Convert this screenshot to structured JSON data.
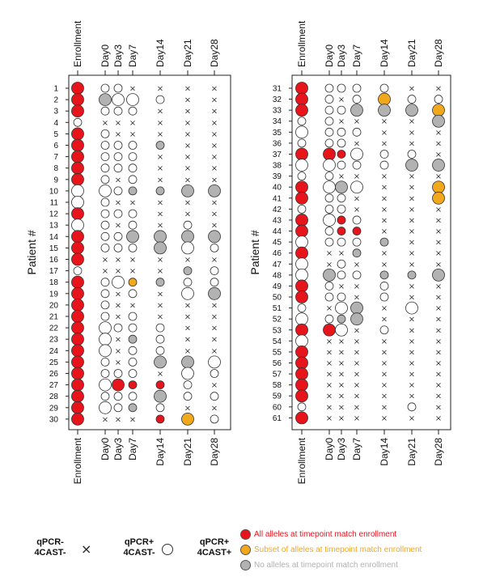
{
  "chart_data": {
    "type": "scatter",
    "y_axis_label": "Patient #",
    "columns": [
      "Enrollment",
      "Day0",
      "Day3",
      "Day7",
      "Day14",
      "Day21",
      "Day28"
    ],
    "panels": [
      {
        "patients": [
          "1",
          "2",
          "3",
          "4",
          "5",
          "6",
          "7",
          "8",
          "9",
          "10",
          "11",
          "12",
          "13",
          "14",
          "15",
          "16",
          "17",
          "18",
          "19",
          "20",
          "21",
          "22",
          "23",
          "24",
          "25",
          "26",
          "27",
          "28",
          "29",
          "30"
        ],
        "cells": [
          [
            "R2",
            "o1",
            "o1",
            "x",
            "x",
            "x",
            "x"
          ],
          [
            "R2",
            "G2",
            "o2",
            "o2",
            "o1",
            "x",
            "x"
          ],
          [
            "R2",
            "o1",
            "o1",
            "o1",
            "x",
            "x",
            "x"
          ],
          [
            "o1",
            "x",
            "x",
            "x",
            "x",
            "x",
            "x"
          ],
          [
            "R2",
            "o1",
            "x",
            "x",
            "x",
            "x",
            "x"
          ],
          [
            "R2",
            "o1",
            "o1",
            "o1",
            "G1",
            "x",
            "x"
          ],
          [
            "R2",
            "o1",
            "o1",
            "o1",
            "x",
            "x",
            "x"
          ],
          [
            "R2",
            "o1",
            "o1",
            "o1",
            "x",
            "x",
            "x"
          ],
          [
            "R2",
            "o1",
            "x",
            "o1",
            "x",
            "x",
            "x"
          ],
          [
            "o2",
            "o2",
            "o1",
            "G1",
            "G1",
            "G2",
            "G2"
          ],
          [
            "o2",
            "o1",
            "x",
            "x",
            "x",
            "x",
            "x"
          ],
          [
            "R2",
            "o1",
            "o1",
            "o1",
            "x",
            "x",
            "x"
          ],
          [
            "o2",
            "o1",
            "x",
            "o1",
            "x",
            "o1",
            "x"
          ],
          [
            "R2",
            "o1",
            "o1",
            "G2",
            "G2",
            "G2",
            "G2"
          ],
          [
            "R2",
            "o1",
            "o1",
            "o1",
            "G2",
            "o2",
            "o1"
          ],
          [
            "R2",
            "x",
            "x",
            "x",
            "x",
            "x",
            "x"
          ],
          [
            "o1",
            "x",
            "x",
            "x",
            "x",
            "G1",
            "o1"
          ],
          [
            "R2",
            "o1",
            "o2",
            "Y1",
            "G1",
            "o1",
            "o1"
          ],
          [
            "R2",
            "o1",
            "x",
            "o1",
            "x",
            "o2",
            "G2"
          ],
          [
            "R2",
            "o1",
            "x",
            "x",
            "x",
            "x",
            "x"
          ],
          [
            "R2",
            "o1",
            "x",
            "o1",
            "x",
            "x",
            "x"
          ],
          [
            "R2",
            "o2",
            "o1",
            "o1",
            "o1",
            "x",
            "x"
          ],
          [
            "R2",
            "o2",
            "x",
            "G1",
            "o1",
            "x",
            "x"
          ],
          [
            "R2",
            "o2",
            "x",
            "o1",
            "o1",
            "x",
            "x"
          ],
          [
            "R2",
            "o1",
            "x",
            "o1",
            "G2",
            "G2",
            "o2"
          ],
          [
            "R2",
            "o1",
            "o1",
            "o1",
            "x",
            "o2",
            "o1"
          ],
          [
            "R2",
            "o2",
            "R2",
            "R1",
            "R1",
            "o1",
            "x"
          ],
          [
            "R2",
            "o1",
            "o1",
            "o1",
            "G2",
            "o1",
            "o1"
          ],
          [
            "R2",
            "o2",
            "o1",
            "G1",
            "o1",
            "x",
            "x"
          ],
          [
            "R2",
            "x",
            "x",
            "x",
            "R1",
            "Y2",
            "o1"
          ]
        ]
      },
      {
        "patients": [
          "31",
          "32",
          "33",
          "34",
          "35",
          "36",
          "37",
          "38",
          "39",
          "40",
          "41",
          "42",
          "43",
          "44",
          "45",
          "46",
          "47",
          "48",
          "49",
          "50",
          "51",
          "52",
          "53",
          "54",
          "55",
          "56",
          "57",
          "58",
          "59",
          "60",
          "61"
        ],
        "cells": [
          [
            "R2",
            "o1",
            "o1",
            "o1",
            "o1",
            "x",
            "x"
          ],
          [
            "R2",
            "o1",
            "x",
            "o1",
            "Y2",
            "o1",
            "o1"
          ],
          [
            "R2",
            "o1",
            "o1",
            "G2",
            "G2",
            "G2",
            "Y2"
          ],
          [
            "o1",
            "o1",
            "x",
            "x",
            "x",
            "x",
            "G2"
          ],
          [
            "o2",
            "o1",
            "o1",
            "o1",
            "x",
            "x",
            "x"
          ],
          [
            "o1",
            "o1",
            "o1",
            "x",
            "x",
            "x",
            "x"
          ],
          [
            "R2",
            "R2",
            "R1",
            "o2",
            "o1",
            "o1",
            "x"
          ],
          [
            "o2",
            "o2",
            "o1",
            "o1",
            "o1",
            "G2",
            "G2"
          ],
          [
            "o1",
            "o1",
            "x",
            "x",
            "x",
            "x",
            "x"
          ],
          [
            "R2",
            "o2",
            "G2",
            "o2",
            "x",
            "x",
            "Y2"
          ],
          [
            "R2",
            "o1",
            "o1",
            "x",
            "x",
            "x",
            "Y2"
          ],
          [
            "o1",
            "o1",
            "o1",
            "x",
            "x",
            "x",
            "x"
          ],
          [
            "R2",
            "o2",
            "R1",
            "o1",
            "x",
            "x",
            "x"
          ],
          [
            "R2",
            "o1",
            "R1",
            "R1",
            "x",
            "x",
            "x"
          ],
          [
            "o2",
            "o1",
            "o1",
            "o1",
            "G1",
            "x",
            "x"
          ],
          [
            "R2",
            "x",
            "x",
            "G1",
            "x",
            "x",
            "x"
          ],
          [
            "o2",
            "x",
            "o1",
            "x",
            "x",
            "x",
            "x"
          ],
          [
            "o2",
            "G2",
            "o1",
            "o1",
            "G1",
            "G1",
            "G2"
          ],
          [
            "R2",
            "o1",
            "x",
            "x",
            "o1",
            "x",
            "x"
          ],
          [
            "R2",
            "o1",
            "o1",
            "x",
            "o1",
            "x",
            "x"
          ],
          [
            "o1",
            "x",
            "o2",
            "G2",
            "x",
            "o2",
            "x"
          ],
          [
            "o2",
            "o1",
            "G1",
            "G2",
            "x",
            "x",
            "x"
          ],
          [
            "R2",
            "R2",
            "o2",
            "x",
            "o1",
            "x",
            "x"
          ],
          [
            "o2",
            "x",
            "x",
            "x",
            "x",
            "x",
            "x"
          ],
          [
            "R2",
            "x",
            "x",
            "x",
            "x",
            "x",
            "x"
          ],
          [
            "R2",
            "x",
            "x",
            "x",
            "x",
            "x",
            "x"
          ],
          [
            "R2",
            "x",
            "x",
            "x",
            "x",
            "x",
            "x"
          ],
          [
            "R2",
            "x",
            "x",
            "x",
            "x",
            "x",
            "x"
          ],
          [
            "R2",
            "x",
            "x",
            "x",
            "x",
            "x",
            "x"
          ],
          [
            "o1",
            "x",
            "x",
            "x",
            "x",
            "o1",
            "x"
          ],
          [
            "R2",
            "x",
            "x",
            "x",
            "x",
            "x",
            "x"
          ]
        ]
      }
    ],
    "legend": {
      "symbols": [
        {
          "label_line1": "qPCR-",
          "label_line2": "4CAST-",
          "marker": "cross"
        },
        {
          "label_line1": "qPCR+",
          "label_line2": "4CAST-",
          "marker": "open-circle"
        },
        {
          "label_line1": "qPCR+",
          "label_line2": "4CAST+",
          "marker": "filled-circle"
        }
      ],
      "categories": [
        {
          "label": "All alleles at timepoint match enrollment",
          "color": "#e8141b"
        },
        {
          "label": "Subset of alleles at timepoint match enrollment",
          "color": "#f2a81d"
        },
        {
          "label": "No alleles at timepoint match enrollment",
          "color": "#b2b2b2"
        }
      ]
    },
    "grid": false
  }
}
